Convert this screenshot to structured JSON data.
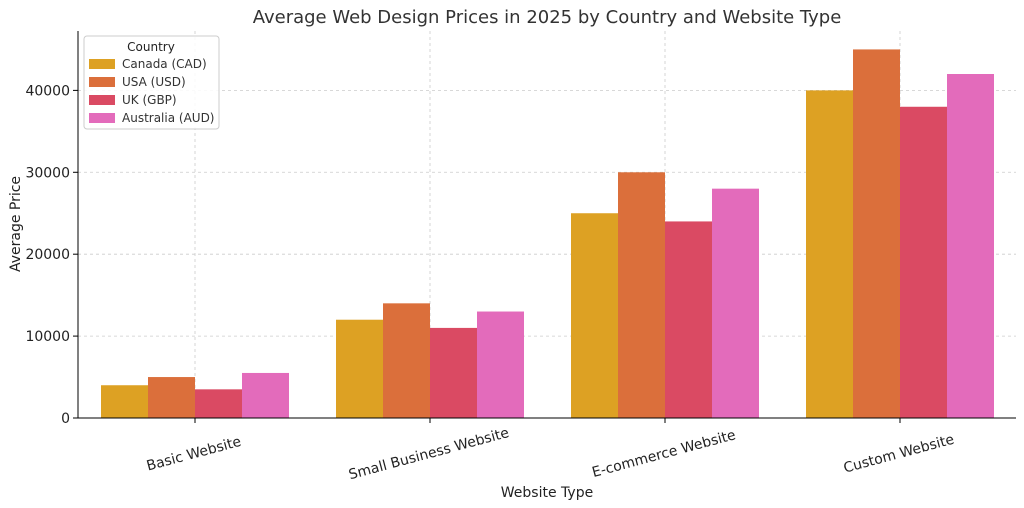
{
  "chart_data": {
    "type": "bar",
    "title": "Average Web Design Prices in 2025 by Country and Website Type",
    "xlabel": "Website Type",
    "ylabel": "Average Price",
    "categories": [
      "Basic Website",
      "Small Business Website",
      "E-commerce Website",
      "Custom Website"
    ],
    "series": [
      {
        "name": "Canada (CAD)",
        "color": "#DDA123",
        "values": [
          4000,
          12000,
          25000,
          40000
        ]
      },
      {
        "name": "USA (USD)",
        "color": "#DB6F3B",
        "values": [
          5000,
          14000,
          30000,
          45000
        ]
      },
      {
        "name": "UK (GBP)",
        "color": "#DA4A63",
        "values": [
          3500,
          11000,
          24000,
          38000
        ]
      },
      {
        "name": "Australia (AUD)",
        "color": "#E36BBB",
        "values": [
          5500,
          13000,
          28000,
          42000
        ]
      }
    ],
    "ylim": [
      0,
      47250
    ],
    "yticks": [
      0,
      10000,
      20000,
      30000,
      40000
    ],
    "legend": {
      "title": "Country",
      "position": "top-left"
    },
    "grid": true
  }
}
